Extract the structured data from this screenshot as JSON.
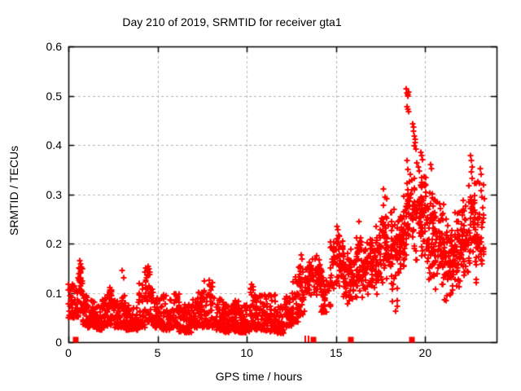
{
  "title": "Day 210 of 2019, SRMTID for receiver gta1",
  "axes": {
    "xlabel": "GPS time / hours",
    "ylabel": "SRMTID / TECUs",
    "x_tick_labels": [
      "0",
      "5",
      "10",
      "15",
      "20"
    ],
    "y_tick_labels": [
      "0",
      "0.1",
      "0.2",
      "0.3",
      "0.4",
      "0.5",
      "0.6"
    ]
  },
  "style": {
    "marker_color": "#ff0000",
    "grid_color": "#b5b5b5",
    "axis_color": "#000000",
    "background": "#ffffff"
  },
  "chart_data": {
    "type": "scatter",
    "title": "Day 210 of 2019, SRMTID for receiver gta1",
    "xlabel": "GPS time / hours",
    "ylabel": "SRMTID / TECUs",
    "xlim": [
      0,
      24
    ],
    "ylim": [
      0,
      0.6
    ],
    "x_tick_values": [
      0,
      5,
      10,
      15,
      20
    ],
    "y_tick_values": [
      0,
      0.1,
      0.2,
      0.3,
      0.4,
      0.5,
      0.6
    ],
    "grid": true,
    "legend": "none",
    "marker": "plus",
    "marker_color": "#ff0000",
    "envelope_bins_format": "[hour_start, hour_end, value_min, value_max, point_count, mode(0=bottom-heavy,1=centered)]",
    "envelope_bins": [
      [
        0.02,
        0.3,
        0.05,
        0.125,
        30,
        0
      ],
      [
        0.3,
        0.55,
        0.05,
        0.115,
        30,
        0
      ],
      [
        0.55,
        0.8,
        0.055,
        0.165,
        35,
        1
      ],
      [
        0.8,
        1.1,
        0.035,
        0.1,
        35,
        0
      ],
      [
        1.1,
        1.5,
        0.03,
        0.085,
        45,
        0
      ],
      [
        1.5,
        1.9,
        0.025,
        0.075,
        45,
        0
      ],
      [
        1.9,
        2.2,
        0.03,
        0.09,
        35,
        0
      ],
      [
        2.2,
        2.5,
        0.035,
        0.112,
        35,
        0
      ],
      [
        2.5,
        2.9,
        0.03,
        0.085,
        45,
        0
      ],
      [
        2.9,
        3.2,
        0.03,
        0.095,
        35,
        0
      ],
      [
        3.2,
        3.9,
        0.025,
        0.075,
        75,
        0
      ],
      [
        3.9,
        4.3,
        0.03,
        0.125,
        40,
        0
      ],
      [
        4.3,
        4.75,
        0.04,
        0.157,
        45,
        0
      ],
      [
        4.75,
        5.2,
        0.03,
        0.09,
        45,
        0
      ],
      [
        5.2,
        5.7,
        0.025,
        0.098,
        50,
        0
      ],
      [
        5.7,
        6.2,
        0.03,
        0.1,
        50,
        0
      ],
      [
        6.2,
        6.9,
        0.02,
        0.078,
        70,
        0
      ],
      [
        6.9,
        7.3,
        0.03,
        0.09,
        40,
        0
      ],
      [
        7.3,
        7.8,
        0.03,
        0.115,
        50,
        0
      ],
      [
        7.8,
        8.15,
        0.03,
        0.125,
        35,
        0
      ],
      [
        8.15,
        8.7,
        0.025,
        0.09,
        55,
        0
      ],
      [
        8.7,
        9.3,
        0.02,
        0.078,
        60,
        0
      ],
      [
        9.3,
        9.8,
        0.02,
        0.088,
        50,
        0
      ],
      [
        9.8,
        10.15,
        0.02,
        0.08,
        35,
        0
      ],
      [
        10.15,
        10.5,
        0.025,
        0.12,
        35,
        0
      ],
      [
        10.5,
        11.0,
        0.025,
        0.1,
        50,
        0
      ],
      [
        11.0,
        11.6,
        0.02,
        0.096,
        60,
        0
      ],
      [
        11.6,
        12.1,
        0.018,
        0.075,
        50,
        0
      ],
      [
        12.1,
        12.5,
        0.03,
        0.095,
        40,
        0
      ],
      [
        12.5,
        12.9,
        0.04,
        0.135,
        40,
        0
      ],
      [
        12.9,
        13.25,
        0.055,
        0.155,
        35,
        0
      ],
      [
        13.25,
        13.6,
        0.08,
        0.165,
        35,
        1
      ],
      [
        13.6,
        14.2,
        0.09,
        0.175,
        60,
        1
      ],
      [
        14.2,
        14.7,
        0.06,
        0.14,
        50,
        0
      ],
      [
        14.7,
        15.4,
        0.1,
        0.225,
        65,
        1
      ],
      [
        15.4,
        16.0,
        0.07,
        0.2,
        55,
        1
      ],
      [
        16.0,
        16.5,
        0.08,
        0.235,
        50,
        1
      ],
      [
        16.5,
        17.0,
        0.09,
        0.225,
        50,
        1
      ],
      [
        17.0,
        17.55,
        0.09,
        0.27,
        55,
        1
      ],
      [
        17.55,
        18.05,
        0.1,
        0.3,
        50,
        1
      ],
      [
        18.05,
        18.55,
        0.07,
        0.29,
        50,
        1
      ],
      [
        18.55,
        18.95,
        0.12,
        0.31,
        45,
        1
      ],
      [
        18.95,
        19.25,
        0.15,
        0.38,
        35,
        1
      ],
      [
        19.25,
        19.65,
        0.15,
        0.4,
        40,
        1
      ],
      [
        19.65,
        20.1,
        0.15,
        0.38,
        55,
        1
      ],
      [
        20.1,
        20.55,
        0.12,
        0.345,
        55,
        1
      ],
      [
        20.55,
        21.05,
        0.1,
        0.3,
        55,
        1
      ],
      [
        21.05,
        21.55,
        0.08,
        0.26,
        55,
        1
      ],
      [
        21.55,
        22.05,
        0.1,
        0.275,
        55,
        1
      ],
      [
        22.05,
        22.45,
        0.1,
        0.3,
        45,
        1
      ],
      [
        22.45,
        22.85,
        0.12,
        0.355,
        40,
        1
      ],
      [
        22.85,
        23.35,
        0.1,
        0.35,
        40,
        1
      ]
    ],
    "outlier_points": [
      [
        0.6,
        0.15
      ],
      [
        0.62,
        0.165
      ],
      [
        0.68,
        0.158
      ],
      [
        3.02,
        0.145
      ],
      [
        3.08,
        0.131
      ],
      [
        4.45,
        0.154
      ],
      [
        4.5,
        0.148
      ],
      [
        4.55,
        0.142
      ],
      [
        7.6,
        0.124
      ],
      [
        7.9,
        0.118
      ],
      [
        8.0,
        0.112
      ],
      [
        10.28,
        0.118
      ],
      [
        10.35,
        0.112
      ],
      [
        13.05,
        0.177
      ],
      [
        13.1,
        0.168
      ],
      [
        13.9,
        0.175
      ],
      [
        15.05,
        0.235
      ],
      [
        15.12,
        0.228
      ],
      [
        15.2,
        0.215
      ],
      [
        16.3,
        0.245
      ],
      [
        17.68,
        0.31
      ],
      [
        17.74,
        0.295
      ],
      [
        18.95,
        0.514
      ],
      [
        18.99,
        0.506
      ],
      [
        19.02,
        0.502
      ],
      [
        19.04,
        0.5
      ],
      [
        19.06,
        0.508
      ],
      [
        18.99,
        0.478
      ],
      [
        19.02,
        0.472
      ],
      [
        19.05,
        0.468
      ],
      [
        19.3,
        0.443
      ],
      [
        19.35,
        0.437
      ],
      [
        19.33,
        0.428
      ],
      [
        19.4,
        0.418
      ],
      [
        19.42,
        0.412
      ],
      [
        19.45,
        0.405
      ],
      [
        19.38,
        0.398
      ],
      [
        19.48,
        0.392
      ],
      [
        19.75,
        0.385
      ],
      [
        19.8,
        0.378
      ],
      [
        19.85,
        0.37
      ],
      [
        20.3,
        0.36
      ],
      [
        20.35,
        0.352
      ],
      [
        22.55,
        0.378
      ],
      [
        22.6,
        0.368
      ],
      [
        22.62,
        0.355
      ],
      [
        22.58,
        0.345
      ],
      [
        22.65,
        0.332
      ],
      [
        23.1,
        0.352
      ],
      [
        23.15,
        0.34
      ],
      [
        23.05,
        0.322
      ],
      [
        23.12,
        0.308
      ],
      [
        23.2,
        0.295
      ],
      [
        18.35,
        0.062
      ],
      [
        18.42,
        0.072
      ],
      [
        18.45,
        0.085
      ],
      [
        21.15,
        0.085
      ],
      [
        21.2,
        0.095
      ]
    ],
    "zero_square_points_x": [
      0.42,
      13.75,
      15.85,
      19.27
    ],
    "zero_tick_points_x": [
      13.3,
      13.45
    ],
    "seed": 42
  }
}
